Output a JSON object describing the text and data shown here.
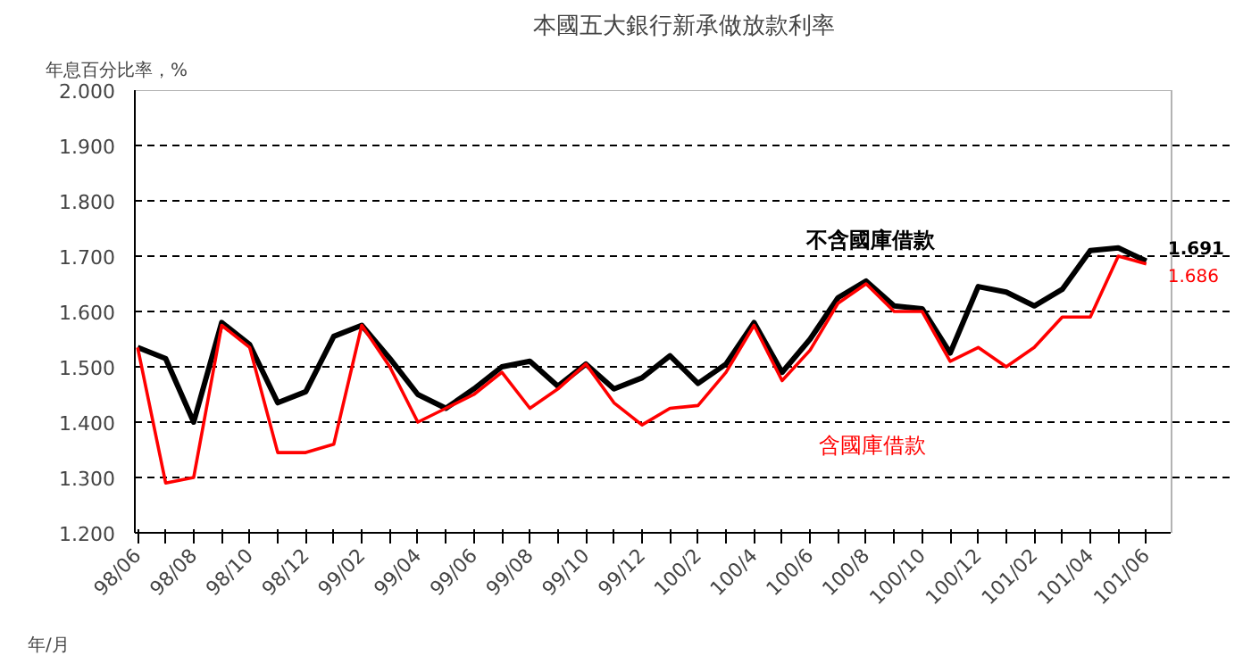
{
  "chart_data": {
    "type": "line",
    "title": "本國五大銀行新承做放款利率",
    "ylabel": "年息百分比率，%",
    "xlabel": "年/月",
    "categories": [
      "98/06",
      null,
      "98/08",
      null,
      "98/10",
      null,
      "98/12",
      null,
      "99/02",
      null,
      "99/04",
      null,
      "99/06",
      null,
      "99/08",
      null,
      "99/10",
      null,
      "99/12",
      null,
      "100/2",
      null,
      "100/4",
      null,
      "100/6",
      null,
      "100/8",
      null,
      "100/10",
      null,
      "100/12",
      null,
      "101/02",
      null,
      "101/04",
      null,
      "101/06"
    ],
    "series": [
      {
        "name": "不含國庫借款",
        "color": "#000000",
        "values": [
          1.535,
          1.515,
          1.4,
          1.58,
          1.54,
          1.435,
          1.455,
          1.555,
          1.575,
          1.515,
          1.45,
          1.425,
          1.46,
          1.5,
          1.51,
          1.465,
          1.505,
          1.46,
          1.48,
          1.52,
          1.47,
          1.505,
          1.58,
          1.49,
          1.55,
          1.625,
          1.655,
          1.61,
          1.605,
          1.525,
          1.645,
          1.635,
          1.61,
          1.64,
          1.71,
          1.715,
          1.691
        ],
        "value_labels": [
          null,
          null,
          null,
          null,
          null,
          null,
          null,
          null,
          null,
          null,
          null,
          null,
          null,
          null,
          null,
          null,
          null,
          null,
          null,
          null,
          null,
          null,
          null,
          null,
          null,
          null,
          null,
          null,
          null,
          null,
          null,
          null,
          null,
          null,
          null,
          null,
          "1.691"
        ]
      },
      {
        "name": "含國庫借款",
        "color": "#ff0000",
        "values": [
          1.535,
          1.29,
          1.3,
          1.575,
          1.535,
          1.345,
          1.345,
          1.36,
          1.575,
          1.5,
          1.4,
          1.425,
          1.45,
          1.49,
          1.425,
          1.46,
          1.505,
          1.435,
          1.395,
          1.425,
          1.43,
          1.49,
          1.575,
          1.475,
          1.53,
          1.615,
          1.65,
          1.6,
          1.6,
          1.51,
          1.535,
          1.5,
          1.535,
          1.59,
          1.59,
          1.7,
          1.686
        ],
        "value_labels": [
          null,
          null,
          null,
          null,
          null,
          null,
          null,
          null,
          null,
          null,
          null,
          null,
          null,
          null,
          null,
          null,
          null,
          null,
          null,
          null,
          null,
          null,
          null,
          null,
          null,
          null,
          null,
          null,
          null,
          null,
          null,
          null,
          null,
          null,
          null,
          null,
          "1.686"
        ]
      }
    ],
    "ylim": [
      1.2,
      2.0
    ],
    "yticks": [
      {
        "value": 1.2,
        "label": "1.200"
      },
      {
        "value": 1.3,
        "label": "1.300"
      },
      {
        "value": 1.4,
        "label": "1.400"
      },
      {
        "value": 1.5,
        "label": "1.500"
      },
      {
        "value": 1.6,
        "label": "1.600"
      },
      {
        "value": 1.7,
        "label": "1.700"
      },
      {
        "value": 1.8,
        "label": "1.800"
      },
      {
        "value": 1.9,
        "label": "1.900"
      },
      {
        "value": 2.0,
        "label": "2.000"
      }
    ],
    "grid": "y",
    "legend": false,
    "marker": "none",
    "line_style": "solid"
  }
}
